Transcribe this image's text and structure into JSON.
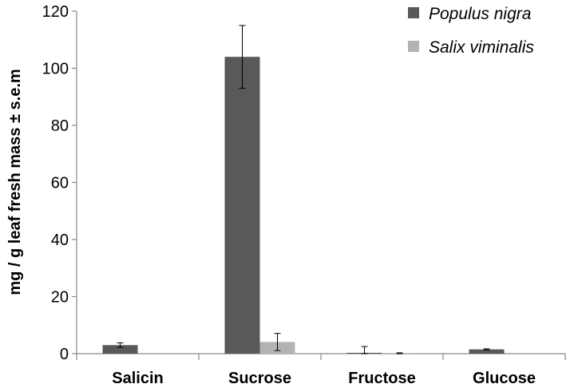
{
  "chart_data": {
    "type": "bar",
    "categories": [
      "Salicin",
      "Sucrose",
      "Fructose",
      "Glucose"
    ],
    "series": [
      {
        "name": "Populus nigra",
        "color": "#595959",
        "values": [
          3.0,
          104.0,
          0.3,
          1.5
        ],
        "errors": [
          0.8,
          11.0,
          2.2,
          0.2
        ]
      },
      {
        "name": "Salix viminalis",
        "color": "#b3b3b3",
        "values": [
          0.0,
          4.1,
          0.1,
          0.0
        ],
        "errors": [
          0.0,
          3.0,
          0.2,
          0.0
        ]
      }
    ],
    "ylabel": "mg / g leaf  fresh mass ± s.e.m",
    "xlabel": "",
    "ylim": [
      0,
      120
    ],
    "yticks": [
      0,
      20,
      40,
      60,
      80,
      100,
      120
    ],
    "grid": false,
    "legend_position": "top-right"
  }
}
